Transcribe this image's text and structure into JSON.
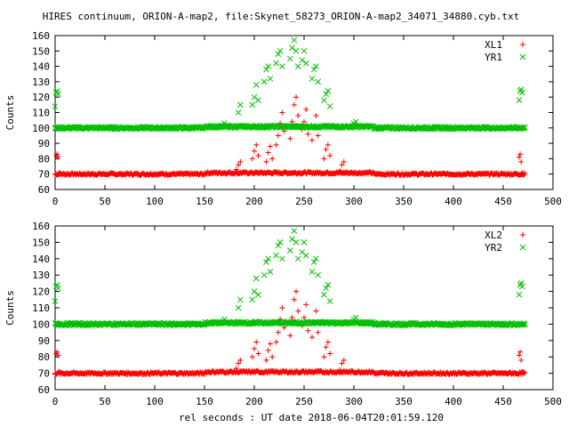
{
  "title": "HIRES continuum, ORION-A-map2, file:Skynet_58273_ORION-A-map2_34071_34880.cyb.txt",
  "xlabel": "rel seconds : UT date 2018-06-04T20:01:59.120",
  "colors": {
    "red": "#ff0000",
    "green": "#00c000",
    "axis": "#000000"
  },
  "chart_data": [
    {
      "type": "scatter",
      "ylabel": "Counts",
      "xlim": [
        0,
        500
      ],
      "ylim": [
        60,
        160
      ],
      "x_ticks": [
        "0",
        "50",
        "100",
        "150",
        "200",
        "250",
        "300",
        "350",
        "400",
        "450",
        "500"
      ],
      "y_ticks": [
        "60",
        "70",
        "80",
        "90",
        "100",
        "110",
        "120",
        "130",
        "140",
        "150",
        "160"
      ],
      "grid": false,
      "legend_position": "top-right",
      "series": [
        {
          "name": "XL1",
          "marker": "plus",
          "color": "#ff0000",
          "baseline": 70,
          "points": [
            [
              0,
              70
            ],
            [
              1,
              82
            ],
            [
              2,
              83
            ],
            [
              3,
              81
            ],
            [
              4,
              71
            ],
            [
              182,
              73
            ],
            [
              184,
              76
            ],
            [
              186,
              78
            ],
            [
              198,
              80
            ],
            [
              200,
              85
            ],
            [
              202,
              89
            ],
            [
              204,
              82
            ],
            [
              212,
              78
            ],
            [
              214,
              84
            ],
            [
              216,
              88
            ],
            [
              218,
              80
            ],
            [
              222,
              89
            ],
            [
              224,
              95
            ],
            [
              226,
              103
            ],
            [
              228,
              110
            ],
            [
              230,
              98
            ],
            [
              236,
              93
            ],
            [
              238,
              104
            ],
            [
              240,
              115
            ],
            [
              242,
              120
            ],
            [
              244,
              108
            ],
            [
              248,
              99
            ],
            [
              250,
              104
            ],
            [
              252,
              112
            ],
            [
              254,
              96
            ],
            [
              258,
              92
            ],
            [
              260,
              101
            ],
            [
              262,
              108
            ],
            [
              264,
              95
            ],
            [
              270,
              80
            ],
            [
              272,
              86
            ],
            [
              274,
              89
            ],
            [
              276,
              82
            ],
            [
              286,
              72
            ],
            [
              288,
              76
            ],
            [
              290,
              78
            ],
            [
              466,
              81
            ],
            [
              467,
              83
            ],
            [
              468,
              78
            ],
            [
              469,
              71
            ]
          ]
        },
        {
          "name": "YR1",
          "marker": "cross",
          "color": "#00c000",
          "baseline": 100,
          "points": [
            [
              0,
              114
            ],
            [
              1,
              123
            ],
            [
              2,
              124
            ],
            [
              3,
              122
            ],
            [
              4,
              100
            ],
            [
              170,
              103
            ],
            [
              184,
              110
            ],
            [
              186,
              115
            ],
            [
              198,
              115
            ],
            [
              200,
              120
            ],
            [
              202,
              128
            ],
            [
              204,
              118
            ],
            [
              210,
              130
            ],
            [
              212,
              138
            ],
            [
              214,
              140
            ],
            [
              216,
              132
            ],
            [
              222,
              142
            ],
            [
              224,
              148
            ],
            [
              226,
              150
            ],
            [
              228,
              140
            ],
            [
              236,
              145
            ],
            [
              238,
              152
            ],
            [
              240,
              157
            ],
            [
              242,
              150
            ],
            [
              244,
              140
            ],
            [
              248,
              144
            ],
            [
              250,
              150
            ],
            [
              252,
              142
            ],
            [
              258,
              132
            ],
            [
              260,
              138
            ],
            [
              262,
              140
            ],
            [
              264,
              130
            ],
            [
              270,
              118
            ],
            [
              272,
              122
            ],
            [
              274,
              124
            ],
            [
              276,
              114
            ],
            [
              300,
              103
            ],
            [
              302,
              104
            ],
            [
              466,
              118
            ],
            [
              467,
              124
            ],
            [
              468,
              125
            ],
            [
              469,
              123
            ]
          ]
        }
      ]
    },
    {
      "type": "scatter",
      "ylabel": "Counts",
      "xlim": [
        0,
        500
      ],
      "ylim": [
        60,
        160
      ],
      "x_ticks": [
        "0",
        "50",
        "100",
        "150",
        "200",
        "250",
        "300",
        "350",
        "400",
        "450",
        "500"
      ],
      "y_ticks": [
        "60",
        "70",
        "80",
        "90",
        "100",
        "110",
        "120",
        "130",
        "140",
        "150",
        "160"
      ],
      "grid": false,
      "legend_position": "top-right",
      "series": [
        {
          "name": "XL2",
          "marker": "plus",
          "color": "#ff0000",
          "baseline": 70,
          "points": [
            [
              0,
              70
            ],
            [
              1,
              82
            ],
            [
              2,
              83
            ],
            [
              3,
              81
            ],
            [
              4,
              71
            ],
            [
              182,
              73
            ],
            [
              184,
              76
            ],
            [
              186,
              78
            ],
            [
              198,
              80
            ],
            [
              200,
              85
            ],
            [
              202,
              89
            ],
            [
              204,
              82
            ],
            [
              212,
              78
            ],
            [
              214,
              84
            ],
            [
              216,
              88
            ],
            [
              218,
              80
            ],
            [
              222,
              89
            ],
            [
              224,
              95
            ],
            [
              226,
              103
            ],
            [
              228,
              110
            ],
            [
              230,
              98
            ],
            [
              236,
              93
            ],
            [
              238,
              104
            ],
            [
              240,
              115
            ],
            [
              242,
              120
            ],
            [
              244,
              108
            ],
            [
              248,
              99
            ],
            [
              250,
              104
            ],
            [
              252,
              112
            ],
            [
              254,
              96
            ],
            [
              258,
              92
            ],
            [
              260,
              101
            ],
            [
              262,
              108
            ],
            [
              264,
              95
            ],
            [
              270,
              80
            ],
            [
              272,
              86
            ],
            [
              274,
              89
            ],
            [
              276,
              82
            ],
            [
              286,
              72
            ],
            [
              288,
              76
            ],
            [
              290,
              78
            ],
            [
              466,
              81
            ],
            [
              467,
              83
            ],
            [
              468,
              78
            ],
            [
              469,
              71
            ]
          ]
        },
        {
          "name": "YR2",
          "marker": "cross",
          "color": "#00c000",
          "baseline": 100,
          "points": [
            [
              0,
              114
            ],
            [
              1,
              123
            ],
            [
              2,
              124
            ],
            [
              3,
              122
            ],
            [
              4,
              100
            ],
            [
              170,
              103
            ],
            [
              184,
              110
            ],
            [
              186,
              115
            ],
            [
              198,
              115
            ],
            [
              200,
              120
            ],
            [
              202,
              128
            ],
            [
              204,
              118
            ],
            [
              210,
              130
            ],
            [
              212,
              138
            ],
            [
              214,
              140
            ],
            [
              216,
              132
            ],
            [
              222,
              142
            ],
            [
              224,
              148
            ],
            [
              226,
              150
            ],
            [
              228,
              140
            ],
            [
              236,
              145
            ],
            [
              238,
              152
            ],
            [
              240,
              157
            ],
            [
              242,
              150
            ],
            [
              244,
              140
            ],
            [
              248,
              144
            ],
            [
              250,
              150
            ],
            [
              252,
              142
            ],
            [
              258,
              132
            ],
            [
              260,
              138
            ],
            [
              262,
              140
            ],
            [
              264,
              130
            ],
            [
              270,
              118
            ],
            [
              272,
              122
            ],
            [
              274,
              124
            ],
            [
              276,
              114
            ],
            [
              300,
              103
            ],
            [
              302,
              104
            ],
            [
              466,
              118
            ],
            [
              467,
              124
            ],
            [
              468,
              125
            ],
            [
              469,
              123
            ]
          ]
        }
      ]
    }
  ]
}
